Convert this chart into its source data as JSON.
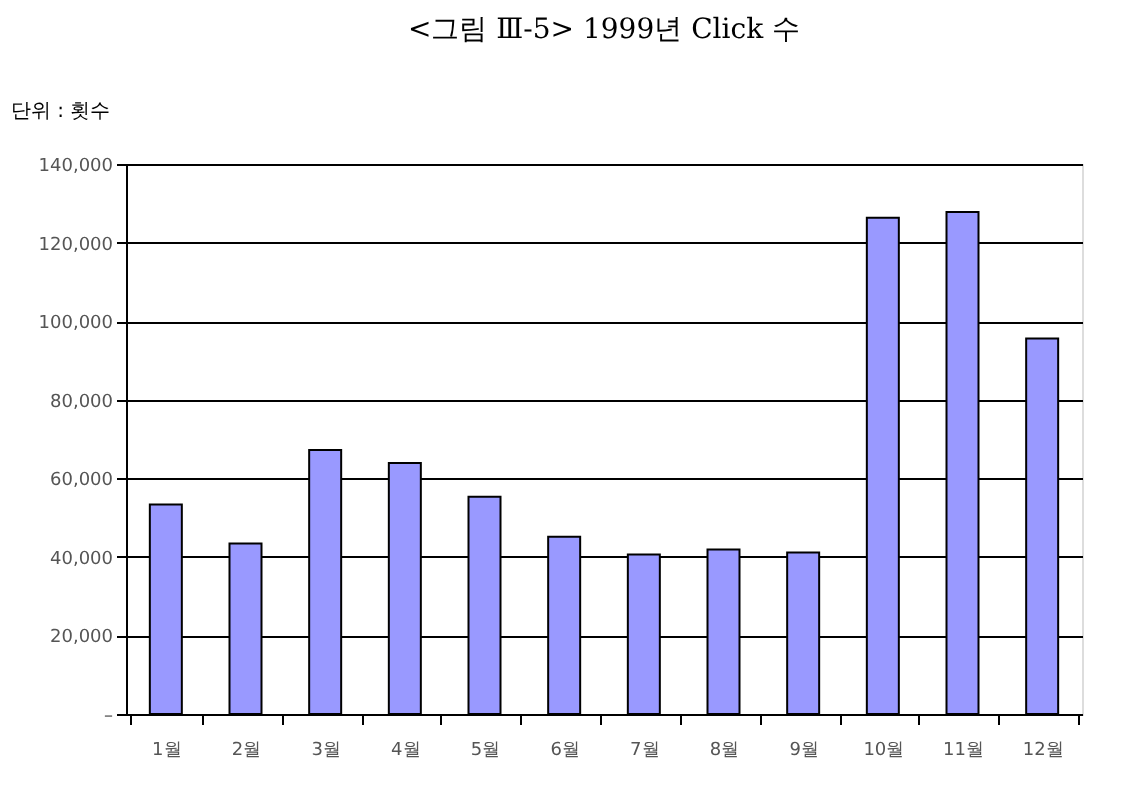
{
  "chart_data": {
    "type": "bar",
    "title": "<그림 Ⅲ-5> 1999년 Click 수",
    "ylabel": "단위 : 횟수",
    "categories": [
      "1월",
      "2월",
      "3월",
      "4월",
      "5월",
      "6월",
      "7월",
      "8월",
      "9월",
      "10월",
      "11월",
      "12월"
    ],
    "values": [
      53300,
      43400,
      67200,
      63900,
      55300,
      45100,
      40600,
      41900,
      41100,
      126300,
      127800,
      95600
    ],
    "color": "#9999ff",
    "ylim": [
      0,
      140000
    ],
    "yticks": [
      {
        "value": 0,
        "label": "–"
      },
      {
        "value": 20000,
        "label": "20,000"
      },
      {
        "value": 40000,
        "label": "40,000"
      },
      {
        "value": 60000,
        "label": "60,000"
      },
      {
        "value": 80000,
        "label": "80,000"
      },
      {
        "value": 100000,
        "label": "100,000"
      },
      {
        "value": 120000,
        "label": "120,000"
      },
      {
        "value": 140000,
        "label": "140,000"
      }
    ],
    "grid": "y"
  }
}
